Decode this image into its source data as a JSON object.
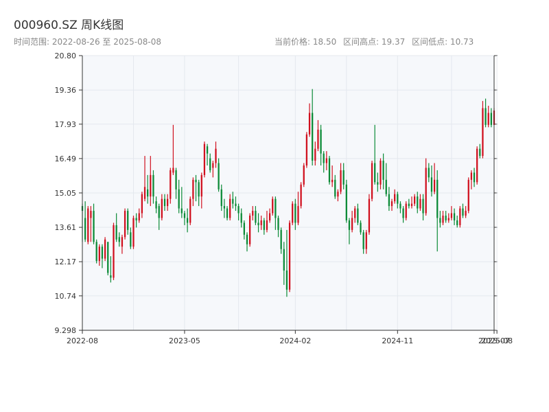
{
  "header": {
    "title": "000960.SZ 周K线图",
    "range": "时间范围: 2022-08-26 至 2025-08-08",
    "current_price": "当前价格: 18.50",
    "range_high": "区间高点: 19.37",
    "range_low": "区间低点: 10.73"
  },
  "colors": {
    "up": "#d0101e",
    "down": "#0b8a36",
    "plot_bg": "#f6f8fb",
    "grid": "#e4e8ee",
    "axis": "#333333"
  },
  "chart_data": {
    "type": "candlestick",
    "title": "000960.SZ 周K线图",
    "ylim": [
      9.298,
      20.8
    ],
    "y_ticks": [
      "9.298",
      "10.74",
      "12.17",
      "13.61",
      "15.05",
      "16.49",
      "17.93",
      "19.36",
      "20.80"
    ],
    "x_ticks": [
      {
        "label": "2022-08",
        "week": 0
      },
      {
        "label": "2023-05",
        "week": 36
      },
      {
        "label": "2024-02",
        "week": 75
      },
      {
        "label": "2024-11",
        "week": 111
      },
      {
        "label": "2025-07",
        "week": 145
      },
      {
        "label": "2025-08",
        "week": 146
      }
    ],
    "grid": true,
    "candles": [
      [
        14.5,
        14.3,
        14.6,
        13.0
      ],
      [
        14.0,
        13.1,
        14.7,
        13.0
      ],
      [
        13.0,
        14.4,
        14.5,
        12.9
      ],
      [
        14.0,
        14.3,
        14.5,
        13.0
      ],
      [
        14.3,
        13.0,
        14.6,
        12.9
      ],
      [
        13.0,
        12.2,
        13.1,
        12.1
      ],
      [
        12.2,
        12.8,
        12.9,
        12.0
      ],
      [
        12.8,
        12.3,
        12.9,
        11.9
      ],
      [
        12.3,
        13.1,
        13.2,
        12.2
      ],
      [
        13.0,
        11.7,
        13.0,
        11.6
      ],
      [
        11.6,
        11.5,
        12.4,
        11.3
      ],
      [
        11.5,
        13.7,
        13.8,
        11.4
      ],
      [
        13.7,
        13.1,
        14.2,
        13.0
      ],
      [
        13.2,
        13.0,
        13.4,
        12.8
      ],
      [
        12.8,
        13.2,
        13.3,
        12.5
      ],
      [
        13.2,
        14.3,
        14.4,
        13.1
      ],
      [
        14.3,
        13.5,
        14.4,
        13.3
      ],
      [
        13.4,
        12.8,
        13.6,
        12.7
      ],
      [
        12.8,
        14.0,
        14.1,
        12.7
      ],
      [
        14.0,
        13.9,
        14.2,
        13.6
      ],
      [
        13.9,
        14.2,
        14.4,
        13.8
      ],
      [
        14.2,
        15.0,
        15.1,
        14.0
      ],
      [
        14.8,
        15.3,
        16.6,
        14.7
      ],
      [
        15.2,
        14.9,
        15.8,
        14.6
      ],
      [
        14.9,
        15.8,
        16.6,
        14.5
      ],
      [
        15.8,
        14.9,
        16.0,
        14.6
      ],
      [
        14.7,
        14.4,
        14.9,
        14.2
      ],
      [
        14.5,
        14.0,
        14.6,
        13.5
      ],
      [
        14.0,
        14.8,
        15.0,
        13.9
      ],
      [
        14.8,
        14.5,
        15.0,
        14.3
      ],
      [
        14.5,
        14.8,
        15.0,
        14.3
      ],
      [
        14.8,
        16.0,
        16.1,
        14.6
      ],
      [
        15.9,
        16.1,
        17.9,
        15.8
      ],
      [
        16.0,
        15.2,
        16.1,
        14.8
      ],
      [
        15.2,
        14.4,
        15.6,
        14.2
      ],
      [
        14.4,
        14.2,
        15.3,
        14.0
      ],
      [
        14.2,
        14.0,
        14.3,
        13.7
      ],
      [
        14.0,
        13.8,
        14.4,
        13.4
      ],
      [
        13.8,
        14.8,
        14.9,
        13.7
      ],
      [
        14.8,
        15.6,
        15.7,
        14.5
      ],
      [
        15.6,
        15.5,
        15.8,
        14.7
      ],
      [
        15.5,
        14.9,
        15.6,
        14.5
      ],
      [
        14.9,
        15.8,
        15.9,
        14.4
      ],
      [
        15.8,
        17.1,
        17.2,
        15.7
      ],
      [
        17.0,
        16.7,
        17.1,
        16.2
      ],
      [
        16.5,
        16.0,
        16.7,
        15.9
      ],
      [
        16.1,
        16.3,
        16.4,
        15.7
      ],
      [
        16.3,
        16.9,
        17.2,
        16.1
      ],
      [
        16.3,
        15.2,
        16.5,
        15.1
      ],
      [
        15.2,
        14.5,
        15.4,
        14.3
      ],
      [
        14.5,
        14.4,
        14.8,
        14.0
      ],
      [
        14.4,
        14.0,
        14.5,
        13.9
      ],
      [
        14.0,
        14.8,
        15.0,
        13.9
      ],
      [
        14.8,
        14.6,
        15.1,
        14.4
      ],
      [
        14.6,
        14.5,
        14.9,
        14.3
      ],
      [
        14.5,
        14.2,
        14.6,
        13.9
      ],
      [
        14.2,
        13.8,
        14.4,
        13.6
      ],
      [
        13.8,
        13.3,
        13.9,
        13.1
      ],
      [
        13.3,
        12.9,
        13.4,
        12.6
      ],
      [
        12.9,
        14.1,
        14.2,
        12.8
      ],
      [
        14.1,
        14.3,
        14.5,
        13.9
      ],
      [
        14.3,
        13.8,
        14.5,
        13.7
      ],
      [
        13.8,
        13.7,
        14.2,
        13.4
      ],
      [
        13.7,
        13.9,
        14.1,
        13.5
      ],
      [
        13.9,
        13.5,
        14.0,
        13.3
      ],
      [
        13.5,
        13.9,
        14.3,
        13.4
      ],
      [
        13.9,
        14.2,
        14.4,
        13.8
      ],
      [
        14.2,
        14.8,
        14.9,
        14.1
      ],
      [
        14.8,
        14.0,
        14.9,
        13.5
      ],
      [
        14.0,
        13.5,
        14.1,
        13.2
      ],
      [
        13.5,
        12.7,
        13.6,
        12.5
      ],
      [
        12.7,
        11.8,
        13.0,
        11.2
      ],
      [
        11.8,
        11.0,
        13.5,
        10.7
      ],
      [
        11.0,
        13.8,
        13.9,
        10.9
      ],
      [
        13.8,
        14.6,
        14.7,
        13.7
      ],
      [
        14.6,
        13.8,
        14.8,
        13.5
      ],
      [
        13.8,
        14.5,
        15.1,
        13.7
      ],
      [
        14.5,
        15.4,
        15.5,
        14.4
      ],
      [
        15.4,
        16.2,
        16.3,
        15.3
      ],
      [
        16.2,
        17.5,
        17.6,
        16.1
      ],
      [
        17.5,
        18.4,
        18.8,
        17.4
      ],
      [
        18.4,
        16.4,
        19.4,
        16.2
      ],
      [
        16.4,
        16.9,
        17.2,
        16.2
      ],
      [
        16.9,
        17.7,
        18.1,
        16.8
      ],
      [
        17.7,
        16.7,
        17.9,
        16.2
      ],
      [
        16.7,
        16.3,
        16.8,
        15.9
      ],
      [
        16.3,
        16.5,
        16.8,
        16.0
      ],
      [
        16.5,
        15.5,
        16.6,
        15.4
      ],
      [
        15.5,
        15.6,
        16.2,
        15.3
      ],
      [
        15.6,
        14.9,
        15.8,
        14.8
      ],
      [
        14.9,
        15.1,
        15.2,
        14.7
      ],
      [
        15.1,
        16.0,
        16.3,
        15.0
      ],
      [
        16.0,
        15.4,
        16.3,
        15.2
      ],
      [
        15.4,
        13.9,
        15.6,
        13.8
      ],
      [
        13.9,
        13.5,
        14.0,
        12.9
      ],
      [
        13.5,
        14.0,
        14.3,
        13.4
      ],
      [
        14.0,
        14.4,
        14.5,
        13.8
      ],
      [
        14.4,
        13.8,
        14.6,
        13.7
      ],
      [
        13.8,
        13.4,
        13.9,
        13.3
      ],
      [
        13.4,
        12.7,
        13.5,
        12.5
      ],
      [
        12.7,
        13.4,
        13.5,
        12.5
      ],
      [
        13.4,
        14.8,
        15.0,
        13.3
      ],
      [
        14.8,
        16.3,
        16.4,
        14.7
      ],
      [
        16.3,
        15.5,
        17.9,
        15.4
      ],
      [
        15.5,
        15.4,
        15.9,
        15.1
      ],
      [
        15.4,
        16.4,
        16.5,
        15.2
      ],
      [
        16.4,
        15.6,
        16.7,
        15.2
      ],
      [
        15.6,
        15.0,
        16.3,
        14.9
      ],
      [
        15.0,
        14.5,
        15.3,
        14.3
      ],
      [
        14.5,
        14.7,
        14.8,
        14.3
      ],
      [
        14.7,
        15.0,
        15.2,
        14.6
      ],
      [
        15.0,
        14.6,
        15.1,
        14.4
      ],
      [
        14.6,
        14.4,
        14.7,
        14.2
      ],
      [
        14.4,
        14.0,
        14.5,
        13.8
      ],
      [
        14.0,
        14.6,
        14.7,
        13.9
      ],
      [
        14.6,
        14.5,
        14.8,
        14.4
      ],
      [
        14.5,
        14.6,
        14.9,
        14.4
      ],
      [
        14.6,
        14.9,
        15.0,
        14.5
      ],
      [
        14.9,
        14.4,
        15.1,
        14.2
      ],
      [
        14.4,
        14.8,
        15.0,
        14.3
      ],
      [
        14.8,
        14.2,
        15.0,
        13.9
      ],
      [
        14.2,
        16.1,
        16.5,
        14.1
      ],
      [
        16.1,
        15.7,
        16.3,
        15.5
      ],
      [
        15.7,
        15.1,
        16.2,
        14.9
      ],
      [
        15.1,
        15.6,
        16.3,
        15.0
      ],
      [
        15.6,
        14.0,
        16.0,
        12.6
      ],
      [
        14.0,
        13.8,
        14.3,
        13.6
      ],
      [
        13.8,
        14.1,
        14.3,
        13.7
      ],
      [
        14.1,
        13.9,
        14.3,
        13.8
      ],
      [
        13.9,
        14.0,
        14.2,
        13.8
      ],
      [
        14.0,
        14.2,
        14.5,
        13.9
      ],
      [
        14.2,
        13.9,
        14.4,
        13.7
      ],
      [
        13.9,
        13.7,
        14.1,
        13.6
      ],
      [
        13.7,
        14.4,
        14.5,
        13.6
      ],
      [
        14.4,
        14.1,
        14.6,
        14.0
      ],
      [
        14.1,
        14.3,
        14.5,
        14.0
      ],
      [
        14.3,
        15.6,
        15.7,
        14.2
      ],
      [
        15.6,
        15.9,
        16.0,
        15.2
      ],
      [
        15.9,
        15.5,
        16.1,
        15.3
      ],
      [
        15.5,
        16.9,
        17.0,
        15.4
      ],
      [
        16.9,
        16.6,
        17.1,
        16.5
      ],
      [
        16.6,
        18.6,
        18.9,
        16.5
      ],
      [
        18.6,
        17.9,
        19.0,
        17.8
      ],
      [
        17.9,
        18.4,
        18.7,
        17.8
      ],
      [
        18.4,
        17.9,
        18.6,
        17.8
      ],
      [
        17.9,
        18.5,
        18.6,
        17.9
      ]
    ]
  }
}
